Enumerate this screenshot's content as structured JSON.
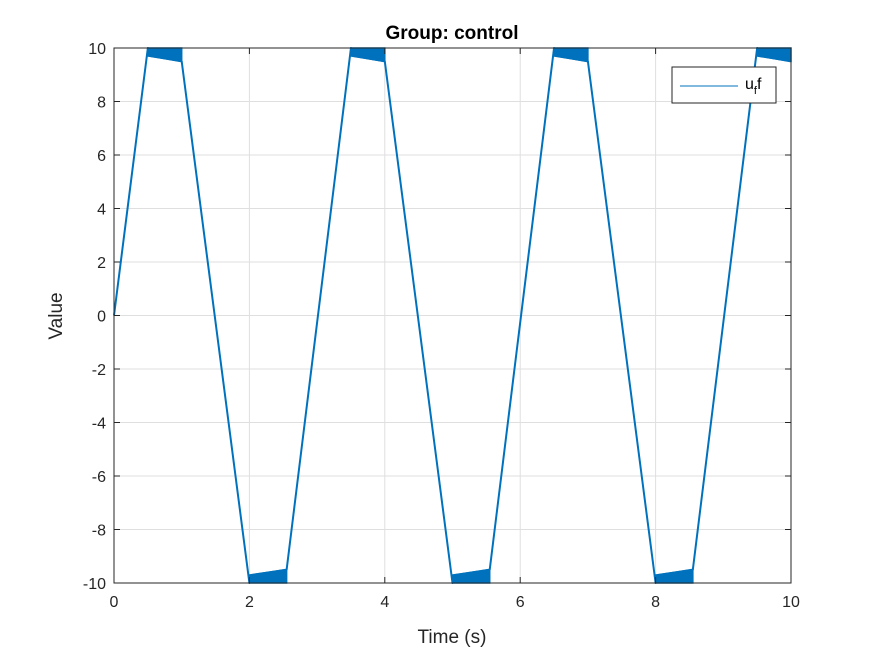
{
  "chart_data": {
    "type": "line",
    "title": "Group: control",
    "xlabel": "Time (s)",
    "ylabel": "Value",
    "xlim": [
      0,
      10
    ],
    "ylim": [
      -10,
      10
    ],
    "xticks": [
      0,
      2,
      4,
      6,
      8,
      10
    ],
    "xtick_labels": [
      "0",
      "2",
      "4",
      "6",
      "8",
      "10"
    ],
    "yticks": [
      -10,
      -8,
      -6,
      -4,
      -2,
      0,
      2,
      4,
      6,
      8,
      10
    ],
    "ytick_labels": [
      "-10",
      "-8",
      "-6",
      "-4",
      "-2",
      "0",
      "2",
      "4",
      "6",
      "8",
      "10"
    ],
    "grid": true,
    "legend_position": "top-right",
    "series": [
      {
        "name": "u_f",
        "name_base": "u",
        "name_sub": "f",
        "name_suffix": "f",
        "color": "#0072BD",
        "x": [
          0,
          0.5,
          0.55,
          1.0,
          2.0,
          2.05,
          2.55,
          3.5,
          3.55,
          4.0,
          5.0,
          5.05,
          5.55,
          6.5,
          6.55,
          7.0,
          8.0,
          8.05,
          8.55,
          9.5,
          9.55,
          10.0
        ],
        "y": [
          0,
          10,
          9.7,
          9.5,
          -10,
          -9.7,
          -9.5,
          10,
          9.7,
          9.5,
          -10,
          -9.7,
          -9.5,
          10,
          9.7,
          9.5,
          -10,
          -9.7,
          -9.5,
          10,
          9.7,
          9.5
        ]
      }
    ],
    "saturation_bands": [
      {
        "x0": 0.5,
        "x1": 1.0,
        "edge": 10,
        "inner_start": 9.7,
        "inner_end": 9.5
      },
      {
        "x0": 2.0,
        "x1": 2.55,
        "edge": -10,
        "inner_start": -9.7,
        "inner_end": -9.5
      },
      {
        "x0": 3.5,
        "x1": 4.0,
        "edge": 10,
        "inner_start": 9.7,
        "inner_end": 9.5
      },
      {
        "x0": 5.0,
        "x1": 5.55,
        "edge": -10,
        "inner_start": -9.7,
        "inner_end": -9.5
      },
      {
        "x0": 6.5,
        "x1": 7.0,
        "edge": 10,
        "inner_start": 9.7,
        "inner_end": 9.5
      },
      {
        "x0": 8.0,
        "x1": 8.55,
        "edge": -10,
        "inner_start": -9.7,
        "inner_end": -9.5
      },
      {
        "x0": 9.5,
        "x1": 10.0,
        "edge": 10,
        "inner_start": 9.7,
        "inner_end": 9.5
      }
    ]
  }
}
